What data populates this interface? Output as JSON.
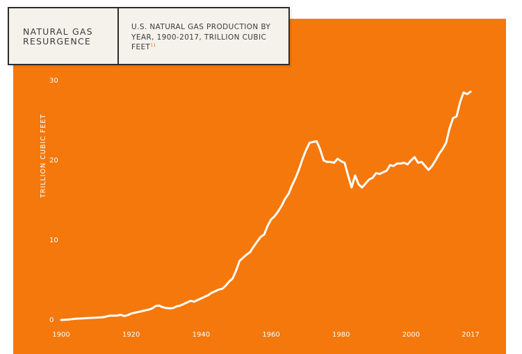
{
  "header": {
    "badge": "NATURAL GAS RESURGENCE",
    "description": "U.S. NATURAL GAS PRODUCTION BY YEAR, 1900-2017, TRILLION CUBIC FEET",
    "footnote": "11"
  },
  "colors": {
    "background": "#f4780c",
    "line": "#ffffff",
    "title_box": "#f5f2ec"
  },
  "chart_data": {
    "type": "line",
    "title": "U.S. NATURAL GAS PRODUCTION BY YEAR, 1900-2017, TRILLION CUBIC FEET",
    "xlabel": "",
    "ylabel": "TRILLION CUBIC FEET",
    "xlim": [
      1900,
      2017
    ],
    "ylim": [
      0,
      30
    ],
    "x_ticks": [
      "1900",
      "1920",
      "1940",
      "1960",
      "1980",
      "2000",
      "2017"
    ],
    "x_tick_values": [
      1900,
      1920,
      1940,
      1960,
      1980,
      2000,
      2017
    ],
    "y_ticks": [
      "0",
      "10",
      "20",
      "30"
    ],
    "y_tick_values": [
      0,
      10,
      20,
      30
    ],
    "grid": false,
    "series": [
      {
        "x": [
          1900,
          1902,
          1904,
          1906,
          1908,
          1910,
          1912,
          1914,
          1916,
          1917,
          1918,
          1919,
          1920,
          1921,
          1922,
          1923,
          1924,
          1925,
          1926,
          1927,
          1928,
          1929,
          1930,
          1931,
          1932,
          1933,
          1934,
          1935,
          1936,
          1937,
          1938,
          1939,
          1940,
          1941,
          1942,
          1943,
          1944,
          1945,
          1946,
          1947,
          1948,
          1949,
          1950,
          1951,
          1952,
          1953,
          1954,
          1955,
          1956,
          1957,
          1958,
          1959,
          1960,
          1961,
          1962,
          1963,
          1964,
          1965,
          1966,
          1967,
          1968,
          1969,
          1970,
          1971,
          1972,
          1973,
          1974,
          1975,
          1976,
          1977,
          1978,
          1979,
          1980,
          1981,
          1982,
          1983,
          1984,
          1985,
          1986,
          1987,
          1988,
          1989,
          1990,
          1991,
          1992,
          1993,
          1994,
          1995,
          1996,
          1997,
          1998,
          1999,
          2000,
          2001,
          2002,
          2003,
          2004,
          2005,
          2006,
          2007,
          2008,
          2009,
          2010,
          2011,
          2012,
          2013,
          2014,
          2015,
          2016,
          2017
        ],
        "y": [
          0.0,
          0.05,
          0.15,
          0.2,
          0.25,
          0.3,
          0.35,
          0.55,
          0.55,
          0.65,
          0.5,
          0.6,
          0.8,
          0.9,
          1.0,
          1.1,
          1.2,
          1.3,
          1.45,
          1.75,
          1.8,
          1.6,
          1.5,
          1.45,
          1.5,
          1.7,
          1.8,
          2.0,
          2.2,
          2.4,
          2.3,
          2.5,
          2.7,
          2.9,
          3.1,
          3.4,
          3.6,
          3.8,
          3.9,
          4.3,
          4.8,
          5.2,
          6.2,
          7.4,
          7.8,
          8.2,
          8.5,
          9.2,
          9.8,
          10.4,
          10.7,
          11.8,
          12.6,
          13.0,
          13.6,
          14.3,
          15.2,
          15.8,
          16.9,
          17.8,
          18.9,
          20.2,
          21.3,
          22.2,
          22.3,
          22.4,
          21.4,
          20.0,
          19.8,
          19.8,
          19.7,
          20.2,
          19.9,
          19.7,
          18.1,
          16.6,
          18.1,
          17.0,
          16.6,
          17.1,
          17.6,
          17.8,
          18.4,
          18.3,
          18.5,
          18.7,
          19.4,
          19.3,
          19.6,
          19.6,
          19.7,
          19.5,
          20.0,
          20.4,
          19.7,
          19.8,
          19.3,
          18.8,
          19.3,
          20.0,
          20.8,
          21.4,
          22.2,
          24.0,
          25.3,
          25.5,
          27.3,
          28.5,
          28.3,
          28.6
        ]
      }
    ]
  }
}
